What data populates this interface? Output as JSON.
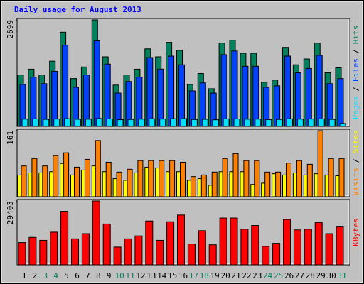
{
  "chart_data": [
    {
      "type": "bar",
      "title": "Daily usage for August 2013",
      "separator": " / ",
      "series": [
        {
          "name": "Hits",
          "color": "#00805c",
          "values": [
            1304,
            1450,
            1304,
            1652,
            2387,
            1212,
            1506,
            2699,
            1763,
            1047,
            1304,
            1450,
            1965,
            1763,
            2130,
            1928,
            1065,
            1340,
            955,
            2112,
            2185,
            1855,
            1855,
            1120,
            1175,
            2002,
            1561,
            1708,
            2112,
            1359,
            1487
          ]
        },
        {
          "name": "Files",
          "color": "#0040ff",
          "values": [
            1065,
            1249,
            1083,
            1396,
            2057,
            992,
            1304,
            2167,
            1579,
            845,
            1139,
            1249,
            1745,
            1451,
            1781,
            1561,
            900,
            1102,
            845,
            1818,
            1910,
            1524,
            1524,
            992,
            1028,
            1781,
            1359,
            1469,
            1800,
            1083,
            1212
          ]
        },
        {
          "name": "Pages",
          "color": "#00e0ff",
          "values": [
            184,
            190,
            178,
            186,
            195,
            180,
            182,
            200,
            188,
            170,
            176,
            184,
            192,
            186,
            194,
            196,
            174,
            180,
            168,
            190,
            188,
            182,
            184,
            172,
            176,
            192,
            184,
            186,
            190,
            178,
            73
          ]
        }
      ],
      "ylim": [
        0,
        2699
      ],
      "yticks": [
        2699
      ]
    },
    {
      "type": "bar",
      "separator": " / ",
      "series": [
        {
          "name": "Sites",
          "color": "#ffff00",
          "values": [
            53,
            58,
            58,
            61,
            81,
            53,
            65,
            75,
            61,
            44,
            40,
            58,
            72,
            70,
            61,
            61,
            40,
            44,
            28,
            61,
            61,
            61,
            30,
            33,
            56,
            53,
            58,
            53,
            56,
            53,
            51
          ]
        },
        {
          "name": "Visits",
          "color": "#ff8000",
          "values": [
            75,
            93,
            75,
            100,
            107,
            72,
            91,
            137,
            84,
            60,
            67,
            88,
            88,
            88,
            88,
            84,
            49,
            53,
            60,
            93,
            105,
            88,
            88,
            60,
            60,
            82,
            88,
            79,
            161,
            93,
            93
          ]
        }
      ],
      "ylim": [
        0,
        161
      ],
      "yticks": [
        161
      ]
    },
    {
      "type": "bar",
      "series": [
        {
          "name": "KBytes",
          "color": "#ff0000",
          "values": [
            10260,
            12655,
            11287,
            15050,
            24630,
            11970,
            14365,
            29403,
            18810,
            8210,
            11970,
            13340,
            20180,
            11287,
            19840,
            22915,
            9575,
            15730,
            9235,
            21550,
            21550,
            16415,
            18125,
            8550,
            9920,
            20865,
            16075,
            16415,
            19495,
            14365,
            17445
          ]
        }
      ],
      "ylim": [
        0,
        29403
      ],
      "yticks": [
        29403
      ],
      "categories": [
        "1",
        "2",
        "3",
        "4",
        "5",
        "6",
        "7",
        "8",
        "9",
        "10",
        "11",
        "12",
        "13",
        "14",
        "15",
        "16",
        "17",
        "18",
        "19",
        "20",
        "21",
        "22",
        "23",
        "24",
        "25",
        "26",
        "27",
        "28",
        "29",
        "30",
        "31"
      ],
      "category_colors": [
        "#000000",
        "#000000",
        "#00805c",
        "#00805c",
        "#000000",
        "#000000",
        "#000000",
        "#000000",
        "#000000",
        "#00805c",
        "#00805c",
        "#000000",
        "#000000",
        "#000000",
        "#000000",
        "#000000",
        "#00805c",
        "#00805c",
        "#000000",
        "#000000",
        "#000000",
        "#000000",
        "#000000",
        "#00805c",
        "#00805c",
        "#000000",
        "#000000",
        "#000000",
        "#000000",
        "#000000",
        "#00805c"
      ]
    }
  ]
}
